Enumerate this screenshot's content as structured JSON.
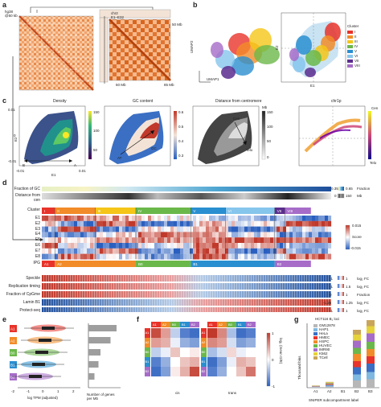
{
  "panel_labels": {
    "a": "a",
    "b": "b",
    "c": "c",
    "d": "d",
    "e": "e",
    "f": "f",
    "g": "g"
  },
  "panel_a": {
    "genome_label": "hg38\n@50 kb",
    "zoom_label": "chr2\nE1–E32",
    "mb_top": "50 Mb",
    "mb_bottom_left": "50 Mb",
    "mb_bottom_right": "85 Mb"
  },
  "panel_b": {
    "umap_xlabel": "UMAP1",
    "umap_ylabel": "UMAP2",
    "pca_xlabel": "E1",
    "pca_ylabel": "E2",
    "legend_title": "Cluster",
    "clusters": [
      {
        "label": "I",
        "color": "#e8332a"
      },
      {
        "label": "II",
        "color": "#f28c28"
      },
      {
        "label": "III",
        "color": "#f5c518"
      },
      {
        "label": "IV",
        "color": "#6bb84a"
      },
      {
        "label": "V",
        "color": "#2a8fd0"
      },
      {
        "label": "VI",
        "color": "#86c5ec"
      },
      {
        "label": "VII",
        "color": "#5b2d8e"
      },
      {
        "label": "VIII",
        "color": "#a66cc8"
      }
    ]
  },
  "panel_c": {
    "titles": [
      "Density",
      "GC content",
      "Distance from centromere",
      "chr1p"
    ],
    "ylabel": "E2",
    "xlabel": "E1",
    "tick_neg": "-0.01",
    "tick_zero": "0",
    "tick_pos": "0.01",
    "arrow_b": "B",
    "arrow_a": "A",
    "gc_label": "GC",
    "at_label": "AT",
    "cen_label": "Cen",
    "telo_label": "Telo",
    "mb_unit": "Mb",
    "density_ticks": [
      "150",
      "100",
      "50"
    ],
    "gc_ticks": [
      "0.6",
      "0.5",
      "0.4",
      "0.3"
    ],
    "dist_ticks": [
      "150",
      "100",
      "50",
      "0"
    ],
    "chr1p_top": "Cen",
    "chr1p_bottom": "Telo"
  },
  "panel_d": {
    "row_gc": "Fraction of GC",
    "row_dist": "Distance from\ncen",
    "row_cluster": "Cluster",
    "row_ipg": "IPG",
    "eig_rows": [
      "E1",
      "E2",
      "E3",
      "E4",
      "E5",
      "E6",
      "E7",
      "E8"
    ],
    "cluster_segments": [
      {
        "label": "I",
        "color": "#e8332a",
        "w": 0.045
      },
      {
        "label": "II",
        "color": "#f28c28",
        "w": 0.14
      },
      {
        "label": "III",
        "color": "#f5c518",
        "w": 0.14
      },
      {
        "label": "IV",
        "color": "#6bb84a",
        "w": 0.19
      },
      {
        "label": "V",
        "color": "#2a8fd0",
        "w": 0.12
      },
      {
        "label": "VI",
        "color": "#86c5ec",
        "w": 0.17
      },
      {
        "label": "VII",
        "color": "#5b2d8e",
        "w": 0.035
      },
      {
        "label": "VIII",
        "color": "#a66cc8",
        "w": 0.09
      }
    ],
    "ipg_segments": [
      {
        "label": "A1",
        "color": "#e8332a",
        "w": 0.045
      },
      {
        "label": "A2",
        "color": "#f28c28",
        "w": 0.28
      },
      {
        "label": "B0",
        "color": "#6bb84a",
        "w": 0.19
      },
      {
        "label": "B1",
        "color": "#2a8fd0",
        "w": 0.29
      },
      {
        "label": "B2",
        "color": "#a66cc8",
        "w": 0.125
      }
    ],
    "track_rows": [
      "Speckle",
      "Replication timing",
      "Fraction of CpGme",
      "Lamin B1",
      "Protect-seq"
    ],
    "gc_range": [
      "0.35",
      "0.65"
    ],
    "gc_unit": "Fraction",
    "dist_range": [
      "0",
      "150"
    ],
    "dist_unit": "Mb",
    "score_label": "Score",
    "score_top": "0.015",
    "score_bottom": "-0.015",
    "track_ranges": [
      {
        "lo": "-1",
        "hi": "1",
        "unit": "log₂ FC"
      },
      {
        "lo": "-1",
        "hi": "1.5",
        "unit": "log₂ FC"
      },
      {
        "lo": "0",
        "hi": "1",
        "unit": "Fraction"
      },
      {
        "lo": "-1.25",
        "hi": "1.25",
        "unit": "log₂ FC"
      },
      {
        "lo": "-1",
        "hi": "1",
        "unit": "log₂ FC"
      }
    ]
  },
  "panel_e": {
    "xlabel": "log TPM (adjusted)",
    "ticks": [
      "-2",
      "-1",
      "0",
      "1",
      "2"
    ],
    "bar_xlabel": "Number of genes\nper Mb",
    "groups": [
      "A1",
      "A2",
      "B0",
      "B1",
      "B2"
    ],
    "group_colors": [
      "#e8332a",
      "#f28c28",
      "#6bb84a",
      "#2a8fd0",
      "#a66cc8"
    ],
    "genes_per_mb": [
      14,
      11,
      6,
      5,
      3
    ]
  },
  "panel_f": {
    "groups": [
      "A1",
      "A2",
      "B0",
      "B1",
      "B2"
    ],
    "cis_label": "cis",
    "trans_label": "trans",
    "scale_label": "log₂ (mean O/E)",
    "scale_ticks": [
      "1",
      "0",
      "-1"
    ],
    "cis_matrix": [
      [
        0.9,
        0.5,
        -0.3,
        -0.8,
        -0.9
      ],
      [
        0.5,
        0.4,
        -0.1,
        -0.5,
        -0.6
      ],
      [
        -0.3,
        -0.1,
        0.3,
        0.0,
        0.1
      ],
      [
        -0.8,
        -0.5,
        0.0,
        0.3,
        0.4
      ],
      [
        -0.9,
        -0.6,
        0.1,
        0.4,
        0.9
      ]
    ],
    "trans_matrix": [
      [
        1.0,
        0.6,
        -0.4,
        -0.9,
        -0.8
      ],
      [
        0.6,
        0.5,
        -0.2,
        -0.6,
        -0.5
      ],
      [
        -0.4,
        -0.2,
        0.2,
        -0.1,
        0.0
      ],
      [
        -0.9,
        -0.6,
        -0.1,
        0.4,
        0.3
      ],
      [
        -0.8,
        -0.5,
        0.0,
        0.3,
        0.7
      ]
    ]
  },
  "panel_g": {
    "title": "HCT116 B₁ loci",
    "ylabel": "Thousand bins",
    "xlabel": "SNIPER subcompartment label",
    "xcats": [
      "A1",
      "A2",
      "B1",
      "B2",
      "B3"
    ],
    "cell_lines": [
      {
        "name": "GM12878",
        "color": "#b7b7b7"
      },
      {
        "name": "HAP1",
        "color": "#7fb8e0"
      },
      {
        "name": "HeLa",
        "color": "#3a6fc4"
      },
      {
        "name": "HMEC",
        "color": "#e8332a"
      },
      {
        "name": "HSPC",
        "color": "#f28c28"
      },
      {
        "name": "HUVEC",
        "color": "#6bb84a"
      },
      {
        "name": "IMR90",
        "color": "#a66cc8"
      },
      {
        "name": "K562",
        "color": "#e6d23a"
      },
      {
        "name": "TCell",
        "color": "#c8a55a"
      }
    ]
  }
}
